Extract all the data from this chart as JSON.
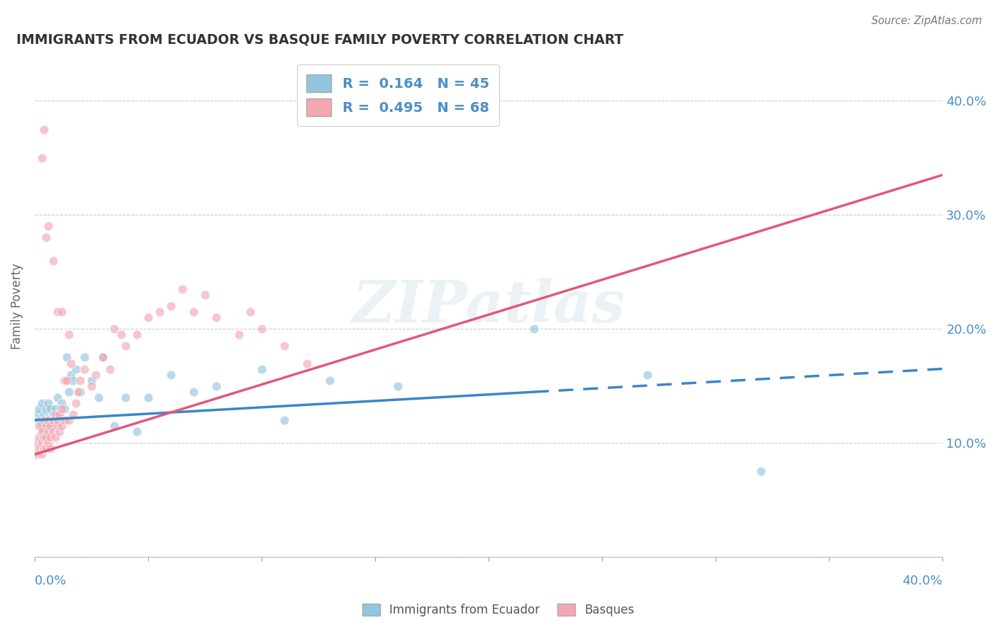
{
  "title": "IMMIGRANTS FROM ECUADOR VS BASQUE FAMILY POVERTY CORRELATION CHART",
  "source": "Source: ZipAtlas.com",
  "ylabel": "Family Poverty",
  "xlim": [
    0.0,
    0.4
  ],
  "ylim": [
    0.0,
    0.44
  ],
  "color_blue": "#92c5de",
  "color_pink": "#f4a7b2",
  "color_blue_line": "#3a86c8",
  "color_pink_line": "#e05878",
  "color_axis_labels": "#4a90c8",
  "background": "#ffffff",
  "grid_color": "#cccccc",
  "watermark_text": "ZIPatlas",
  "ecuador_x": [
    0.001,
    0.002,
    0.002,
    0.003,
    0.003,
    0.004,
    0.004,
    0.005,
    0.005,
    0.006,
    0.006,
    0.007,
    0.007,
    0.008,
    0.008,
    0.009,
    0.01,
    0.01,
    0.011,
    0.012,
    0.013,
    0.014,
    0.015,
    0.016,
    0.017,
    0.018,
    0.02,
    0.022,
    0.025,
    0.028,
    0.03,
    0.035,
    0.04,
    0.045,
    0.05,
    0.06,
    0.07,
    0.08,
    0.1,
    0.11,
    0.13,
    0.16,
    0.22,
    0.27,
    0.32
  ],
  "ecuador_y": [
    0.125,
    0.12,
    0.13,
    0.115,
    0.135,
    0.125,
    0.11,
    0.13,
    0.12,
    0.115,
    0.135,
    0.13,
    0.12,
    0.125,
    0.115,
    0.13,
    0.125,
    0.14,
    0.12,
    0.135,
    0.13,
    0.175,
    0.145,
    0.16,
    0.155,
    0.165,
    0.145,
    0.175,
    0.155,
    0.14,
    0.175,
    0.115,
    0.14,
    0.11,
    0.14,
    0.16,
    0.145,
    0.15,
    0.165,
    0.12,
    0.155,
    0.15,
    0.2,
    0.16,
    0.075
  ],
  "basque_x": [
    0.001,
    0.001,
    0.002,
    0.002,
    0.002,
    0.003,
    0.003,
    0.003,
    0.004,
    0.004,
    0.004,
    0.005,
    0.005,
    0.005,
    0.006,
    0.006,
    0.006,
    0.007,
    0.007,
    0.007,
    0.008,
    0.008,
    0.009,
    0.009,
    0.01,
    0.01,
    0.011,
    0.011,
    0.012,
    0.012,
    0.013,
    0.013,
    0.014,
    0.015,
    0.016,
    0.017,
    0.018,
    0.019,
    0.02,
    0.022,
    0.025,
    0.027,
    0.03,
    0.033,
    0.035,
    0.038,
    0.04,
    0.045,
    0.05,
    0.055,
    0.06,
    0.065,
    0.07,
    0.075,
    0.08,
    0.09,
    0.095,
    0.1,
    0.11,
    0.12,
    0.003,
    0.004,
    0.005,
    0.006,
    0.008,
    0.01,
    0.012,
    0.015
  ],
  "basque_y": [
    0.1,
    0.09,
    0.115,
    0.095,
    0.105,
    0.1,
    0.09,
    0.11,
    0.095,
    0.105,
    0.12,
    0.095,
    0.105,
    0.115,
    0.1,
    0.11,
    0.12,
    0.105,
    0.115,
    0.095,
    0.11,
    0.12,
    0.105,
    0.125,
    0.115,
    0.12,
    0.11,
    0.125,
    0.115,
    0.13,
    0.12,
    0.155,
    0.155,
    0.12,
    0.17,
    0.125,
    0.135,
    0.145,
    0.155,
    0.165,
    0.15,
    0.16,
    0.175,
    0.165,
    0.2,
    0.195,
    0.185,
    0.195,
    0.21,
    0.215,
    0.22,
    0.235,
    0.215,
    0.23,
    0.21,
    0.195,
    0.215,
    0.2,
    0.185,
    0.17,
    0.35,
    0.375,
    0.28,
    0.29,
    0.26,
    0.215,
    0.215,
    0.195
  ],
  "ec_line_start_x": 0.0,
  "ec_line_start_y": 0.12,
  "ec_line_end_x": 0.4,
  "ec_line_end_y": 0.165,
  "ec_line_solid_end": 0.22,
  "bq_line_start_x": 0.0,
  "bq_line_start_y": 0.09,
  "bq_line_end_x": 0.4,
  "bq_line_end_y": 0.335
}
